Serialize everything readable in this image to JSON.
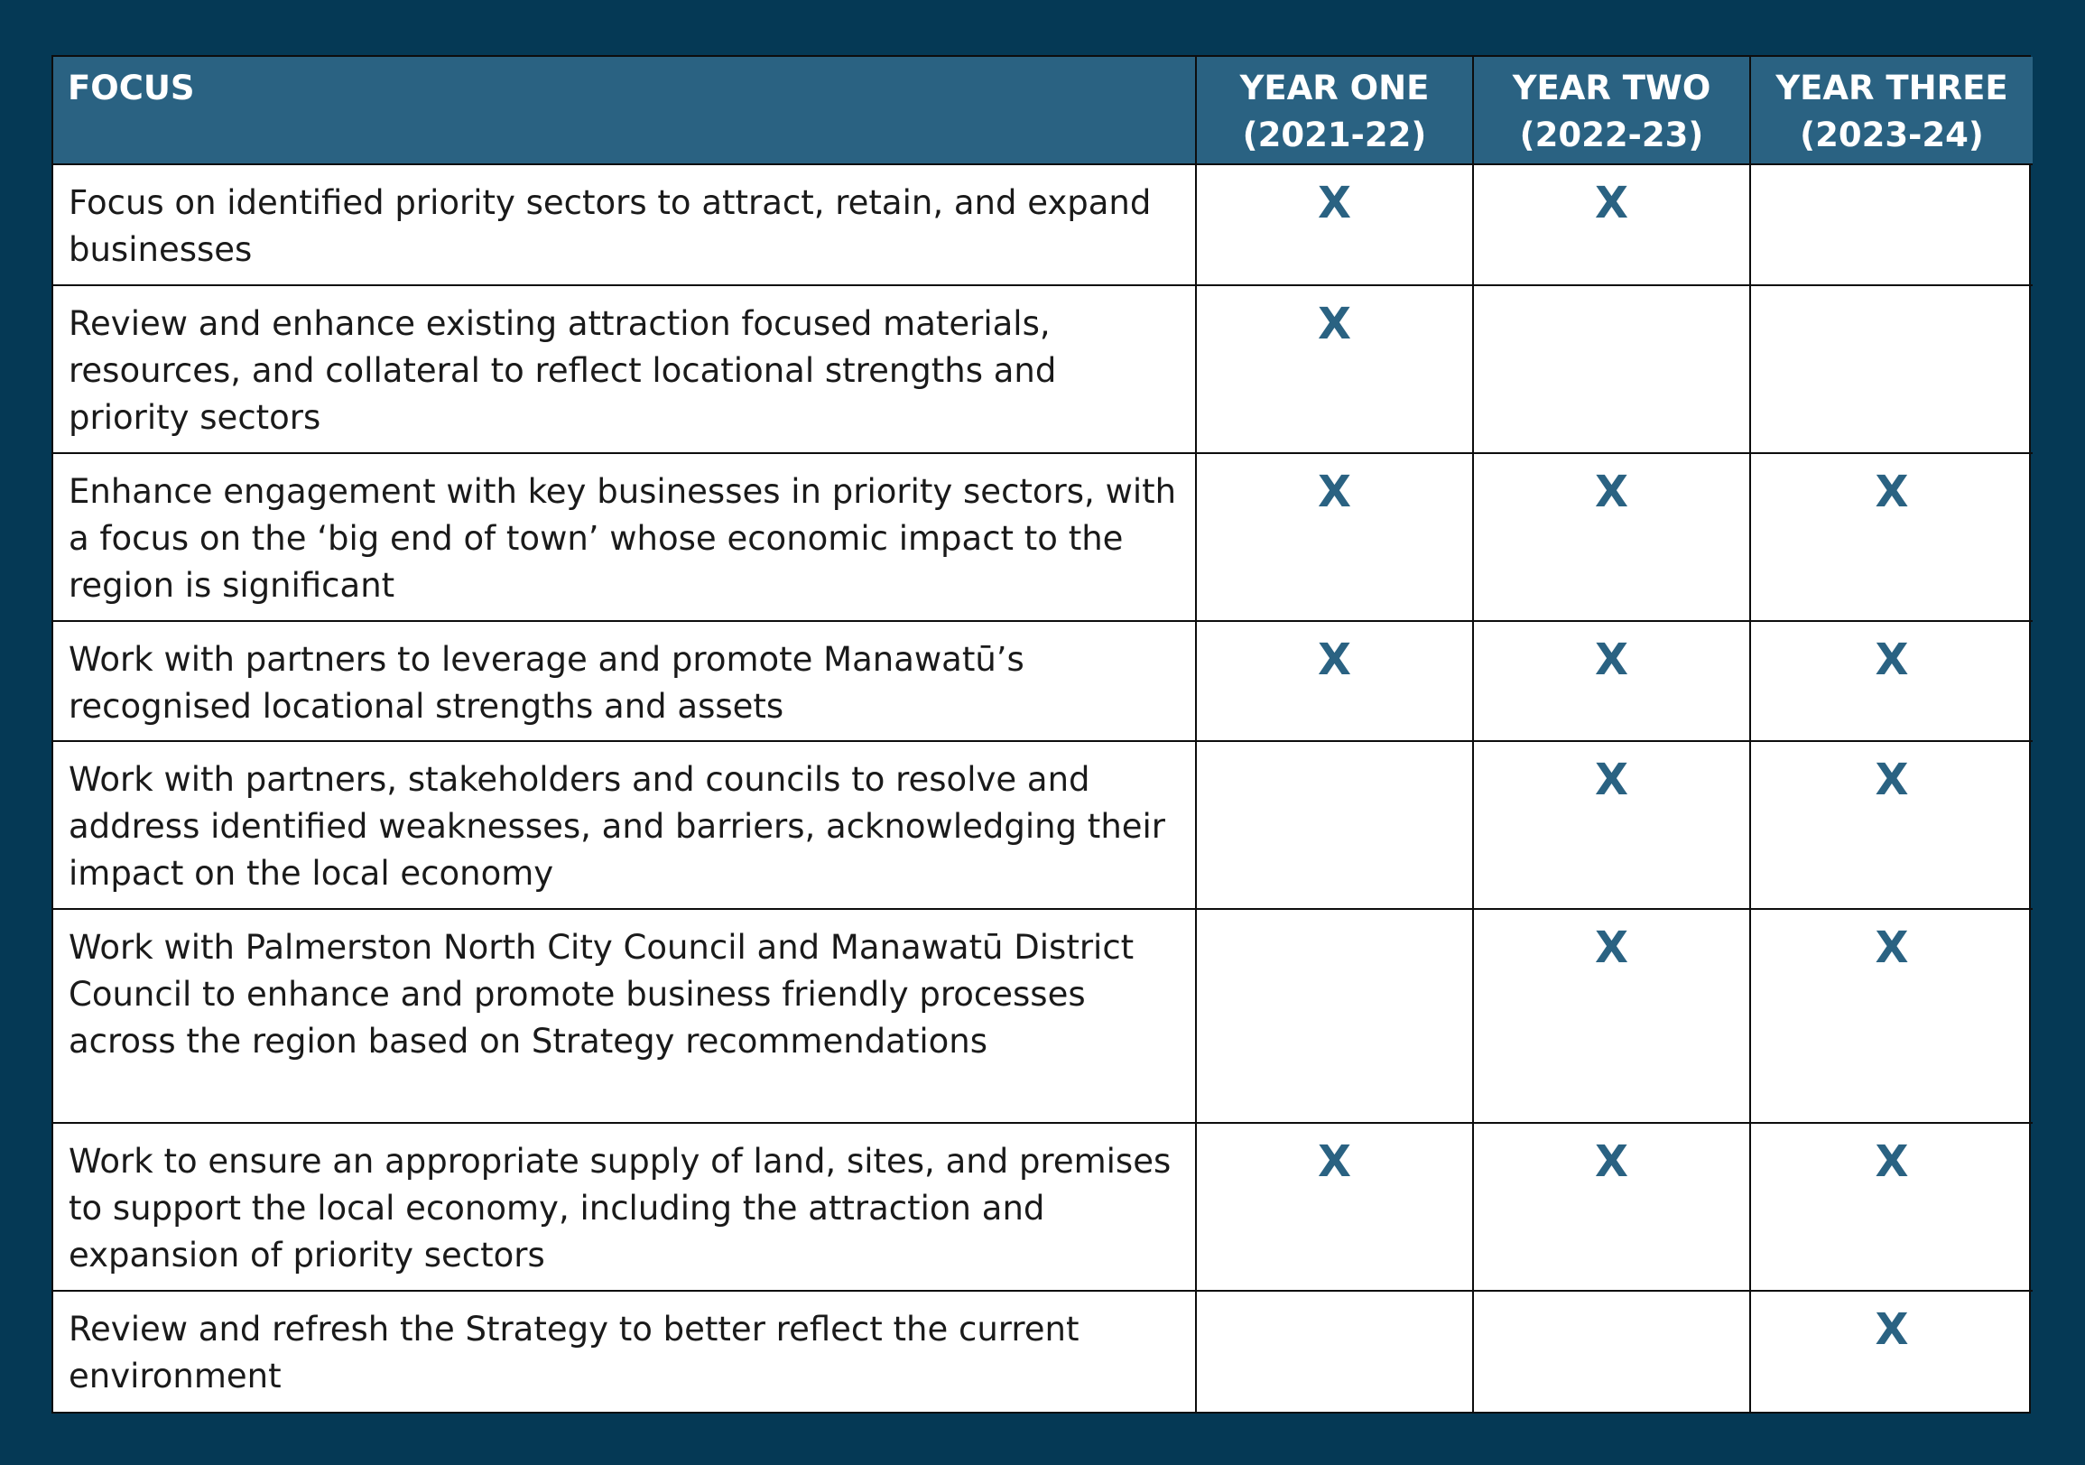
{
  "header": {
    "focus": "FOCUS",
    "years": [
      {
        "line1": "YEAR ONE",
        "line2": "(2021-22)"
      },
      {
        "line1": "YEAR TWO",
        "line2": "(2022-23)"
      },
      {
        "line1": "YEAR THREE",
        "line2": "(2023-24)"
      }
    ]
  },
  "mark_symbol": "X",
  "colors": {
    "background": "#053955",
    "header_fill": "#2a6282",
    "mark": "#2a6282"
  },
  "rows": [
    {
      "focus": "Focus on identified priority sectors to attract, retain, and expand businesses",
      "marks": [
        true,
        true,
        false
      ]
    },
    {
      "focus": "Review and enhance existing attraction focused materials, resources, and collateral to reflect locational strengths and priority sectors",
      "marks": [
        true,
        false,
        false
      ]
    },
    {
      "focus": "Enhance engagement with key businesses in priority sectors, with a focus on the ‘big end of town’ whose economic impact to the region is significant",
      "marks": [
        true,
        true,
        true
      ]
    },
    {
      "focus": "Work with partners to leverage and promote Manawatū’s recognised locational strengths and assets",
      "marks": [
        true,
        true,
        true
      ]
    },
    {
      "focus": "Work with partners, stakeholders and councils to resolve and address identified weaknesses, and barriers, acknowledging their impact on the local economy",
      "marks": [
        false,
        true,
        true
      ]
    },
    {
      "focus": "Work with Palmerston North City Council and Manawatū District Council to enhance and promote business friendly processes across the region based on Strategy recommendations",
      "marks": [
        false,
        true,
        true
      ]
    },
    {
      "focus": "Work to ensure an appropriate supply of land, sites, and premises to support the local economy, including the attraction and expansion of priority sectors",
      "marks": [
        true,
        true,
        true
      ]
    },
    {
      "focus": "Review and refresh the Strategy to better reflect the current environment",
      "marks": [
        false,
        false,
        true
      ]
    }
  ]
}
